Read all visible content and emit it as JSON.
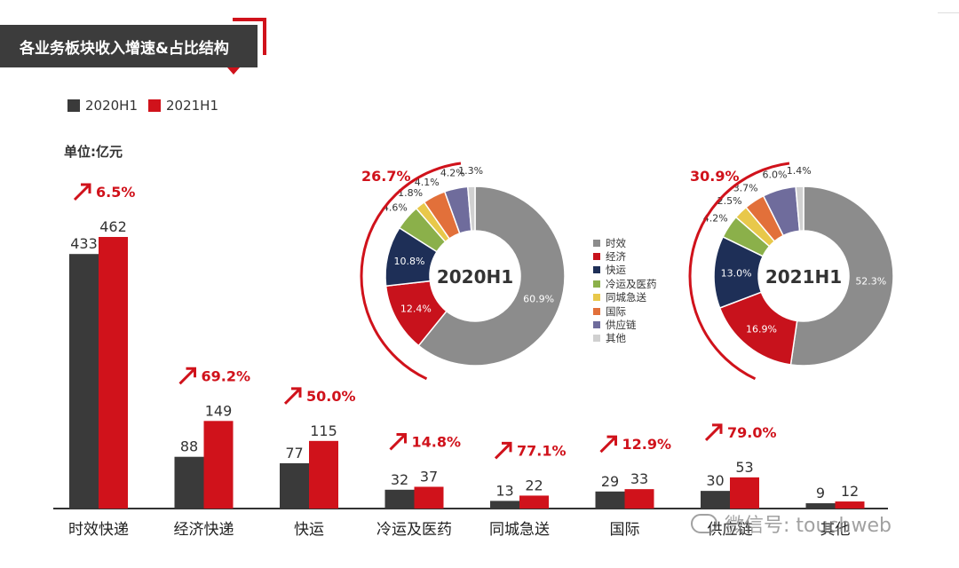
{
  "title": "各业务板块收入增速&占比结构",
  "unit_label": "单位:亿元",
  "watermark": "微信号: touchweb",
  "colors": {
    "series_2020": "#3a3a3a",
    "series_2021": "#d0121b",
    "growth_arrow": "#d0121b",
    "axis": "#333333"
  },
  "chart_data": [
    {
      "type": "bar",
      "title": "",
      "xlabel": "",
      "ylabel": "",
      "categories": [
        "时效快递",
        "经济快递",
        "快运",
        "冷运及医药",
        "同城急送",
        "国际",
        "供应链",
        "其他"
      ],
      "series": [
        {
          "name": "2020H1",
          "values": [
            433,
            88,
            77,
            32,
            13,
            29,
            30,
            9
          ]
        },
        {
          "name": "2021H1",
          "values": [
            462,
            149,
            115,
            37,
            22,
            33,
            53,
            12
          ]
        }
      ],
      "growth_labels": [
        "6.5%",
        "69.2%",
        "50.0%",
        "14.8%",
        "77.1%",
        "12.9%",
        "79.0%",
        ""
      ],
      "ylim": [
        0,
        462
      ],
      "legend": "top-left"
    },
    {
      "type": "pie",
      "center_label": "2020H1",
      "categories": [
        "时效",
        "经济",
        "快运",
        "冷运及医药",
        "同城急送",
        "国际",
        "供应链",
        "其他"
      ],
      "values": [
        60.9,
        12.4,
        10.8,
        4.6,
        1.8,
        4.1,
        4.2,
        1.3
      ],
      "labels": [
        "60.9%",
        "12.4%",
        "10.8%",
        "4.6%",
        "1.8%",
        "4.1%",
        "4.2%",
        "1.3%"
      ],
      "arc_label": "26.7%"
    },
    {
      "type": "pie",
      "center_label": "2021H1",
      "categories": [
        "时效",
        "经济",
        "快运",
        "冷运及医药",
        "同城急送",
        "国际",
        "供应链",
        "其他"
      ],
      "values": [
        52.3,
        16.9,
        13.0,
        4.2,
        2.5,
        3.7,
        6.0,
        1.4
      ],
      "labels": [
        "52.3%",
        "16.9%",
        "13.0%",
        "4.2%",
        "2.5%",
        "3.7%",
        "6.0%",
        "1.4%"
      ],
      "arc_label": "30.9%"
    }
  ],
  "pie_legend": [
    {
      "label": "时效",
      "color": "#8c8c8c"
    },
    {
      "label": "经济",
      "color": "#c8121c"
    },
    {
      "label": "快运",
      "color": "#1e2f57"
    },
    {
      "label": "冷运及医药",
      "color": "#8bb04a"
    },
    {
      "label": "同城急送",
      "color": "#e8c84a"
    },
    {
      "label": "国际",
      "color": "#e2703a"
    },
    {
      "label": "供应链",
      "color": "#6f6c9c"
    },
    {
      "label": "其他",
      "color": "#d0d0d0"
    }
  ]
}
